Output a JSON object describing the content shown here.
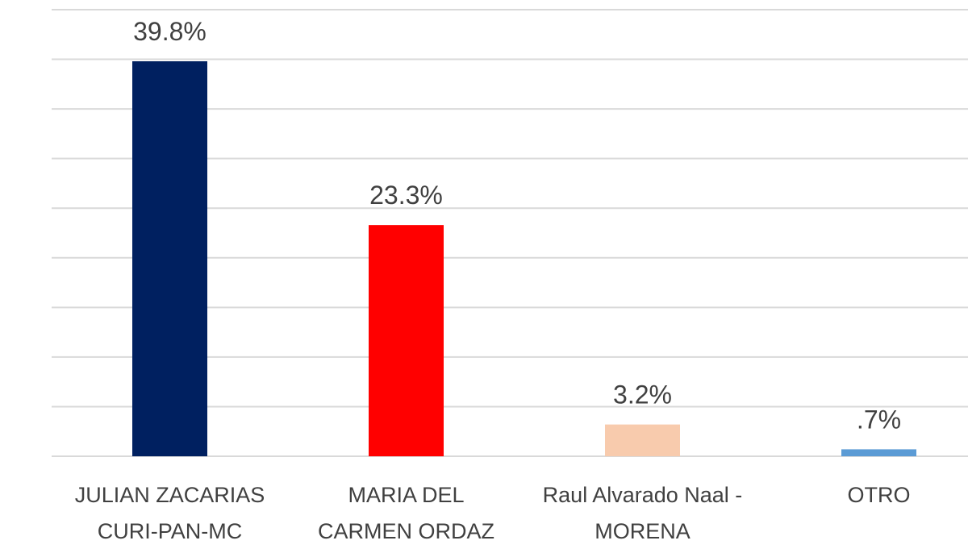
{
  "chart_data": {
    "type": "bar",
    "categories": [
      "JULIAN ZACARIAS CURI-PAN-MC",
      "MARIA DEL CARMEN ORDAZ",
      "Raul Alvarado Naal - MORENA",
      "OTRO"
    ],
    "values": [
      39.8,
      23.3,
      3.2,
      0.7
    ],
    "value_labels": [
      "39.8%",
      "23.3%",
      "3.2%",
      ".7%"
    ],
    "colors": [
      "#002060",
      "#ff0000",
      "#f8cbad",
      "#5b9bd5"
    ],
    "ylim": [
      0,
      45
    ],
    "yticks": [
      0,
      5,
      10,
      15,
      20,
      25,
      30,
      35,
      40,
      45
    ],
    "grid": true
  }
}
